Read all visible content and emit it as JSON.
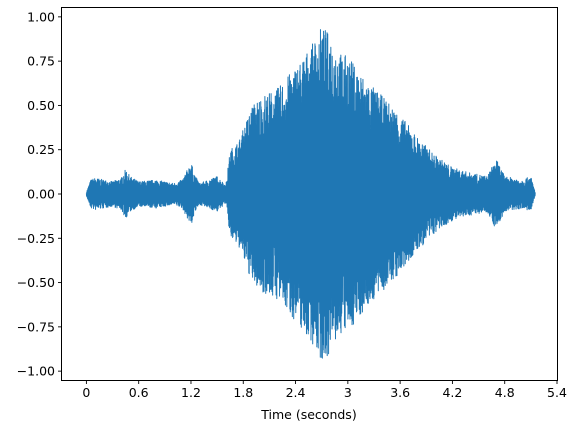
{
  "chart_data": {
    "type": "line",
    "title": "",
    "xlabel": "Time (seconds)",
    "ylabel": "",
    "xlim": [
      -0.28,
      5.4
    ],
    "ylim": [
      -1.05,
      1.05
    ],
    "x_ticks": [
      0,
      0.6,
      1.2,
      1.8,
      2.4,
      3,
      3.6,
      4.2,
      4.8,
      5.4
    ],
    "x_tick_labels": [
      "0",
      "0.6",
      "1.2",
      "1.8",
      "2.4",
      "3",
      "3.6",
      "4.2",
      "4.8",
      "5.4"
    ],
    "y_ticks": [
      -1.0,
      -0.75,
      -0.5,
      -0.25,
      0.0,
      0.25,
      0.5,
      0.75,
      1.0
    ],
    "y_tick_labels": [
      "−1.00",
      "−0.75",
      "−0.50",
      "−0.25",
      "0.00",
      "0.25",
      "0.50",
      "0.75",
      "1.00"
    ],
    "grid": false,
    "legend": "none",
    "series": [
      {
        "color": "#1f77b4",
        "description": "audio waveform amplitude envelope (approximate peak amplitude over time)",
        "envelope": {
          "t": [
            0.0,
            0.05,
            0.1,
            0.3,
            0.4,
            0.45,
            0.5,
            0.6,
            0.8,
            1.0,
            1.1,
            1.2,
            1.25,
            1.3,
            1.5,
            1.6,
            1.65,
            1.75,
            1.9,
            2.0,
            2.2,
            2.4,
            2.6,
            2.7,
            2.8,
            2.9,
            3.0,
            3.2,
            3.4,
            3.6,
            3.8,
            4.0,
            4.2,
            4.4,
            4.6,
            4.7,
            4.8,
            5.0,
            5.1,
            5.15
          ],
          "amp": [
            0.01,
            0.08,
            0.09,
            0.07,
            0.09,
            0.14,
            0.1,
            0.07,
            0.08,
            0.06,
            0.08,
            0.18,
            0.1,
            0.06,
            0.1,
            0.05,
            0.25,
            0.3,
            0.5,
            0.55,
            0.6,
            0.72,
            0.85,
            0.95,
            0.9,
            0.8,
            0.78,
            0.65,
            0.55,
            0.45,
            0.32,
            0.22,
            0.15,
            0.12,
            0.1,
            0.2,
            0.1,
            0.08,
            0.1,
            0.01
          ]
        }
      }
    ]
  }
}
